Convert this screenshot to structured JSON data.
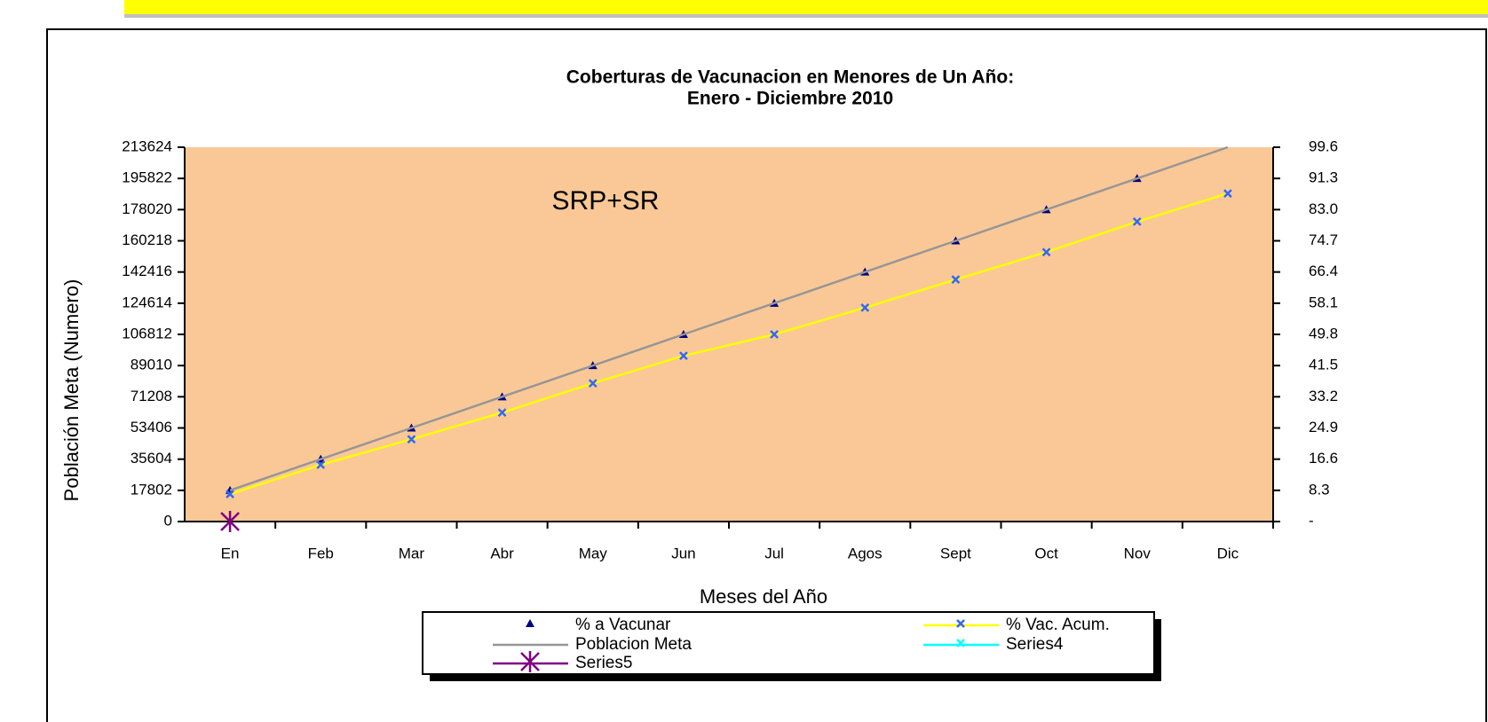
{
  "chart_data": {
    "type": "line",
    "title": "Coberturas de Vacunacion en Menores de Un Año:",
    "subtitle": "Enero - Diciembre 2010",
    "annotation": "SRP+SR",
    "x_label": "Meses del Año",
    "y_label": "Población Meta (Numero)",
    "categories": [
      "En",
      "Feb",
      "Mar",
      "Abr",
      "May",
      "Jun",
      "Jul",
      "Agos",
      "Sept",
      "Oct",
      "Nov",
      "Dic"
    ],
    "ylim": [
      0,
      213624
    ],
    "yticks": [
      0,
      17802,
      35604,
      53406,
      71208,
      89010,
      106812,
      124614,
      142416,
      160218,
      178020,
      195822,
      213624
    ],
    "y2lim": [
      0,
      99.6
    ],
    "y2ticks": [
      {
        "value": 0,
        "label": "-"
      },
      8.3,
      16.6,
      24.9,
      33.2,
      41.5,
      49.8,
      58.1,
      66.4,
      74.7,
      {
        "value": 83,
        "label": "83.0"
      },
      91.3,
      99.6
    ],
    "background": "#fac896",
    "series": [
      {
        "name": "% a Vacunar",
        "axis": "y2",
        "line": false,
        "marker": "triangle",
        "marker_color": "#000080",
        "values": [
          8.3,
          16.6,
          24.9,
          33.2,
          41.5,
          49.8,
          58.1,
          66.4,
          74.7,
          83.0,
          91.3,
          null
        ]
      },
      {
        "name": "% Vac. Acum.",
        "axis": "y2",
        "line": true,
        "color": "#ffff00",
        "marker": "x",
        "marker_color": "#3366ff",
        "values": [
          7.3,
          15.1,
          21.9,
          29.0,
          36.8,
          44.1,
          49.8,
          56.9,
          64.4,
          71.7,
          79.8,
          87.3
        ]
      },
      {
        "name": "Poblacion Meta",
        "axis": "y",
        "line": true,
        "color": "#969696",
        "marker": null,
        "values": [
          17802,
          35604,
          53406,
          71208,
          89010,
          106812,
          124614,
          142416,
          160218,
          178020,
          195822,
          213624
        ]
      },
      {
        "name": "Series4",
        "axis": "y",
        "line": true,
        "color": "#00ffff",
        "marker": "x",
        "marker_color": "#00ffff",
        "values": [
          null,
          null,
          null,
          null,
          null,
          null,
          null,
          null,
          null,
          null,
          null,
          null
        ]
      },
      {
        "name": "Series5",
        "axis": "y",
        "line": true,
        "color": "#800080",
        "marker": "star",
        "marker_color": "#800080",
        "values": [
          0,
          null,
          null,
          null,
          null,
          null,
          null,
          null,
          null,
          null,
          null,
          null
        ]
      }
    ]
  }
}
